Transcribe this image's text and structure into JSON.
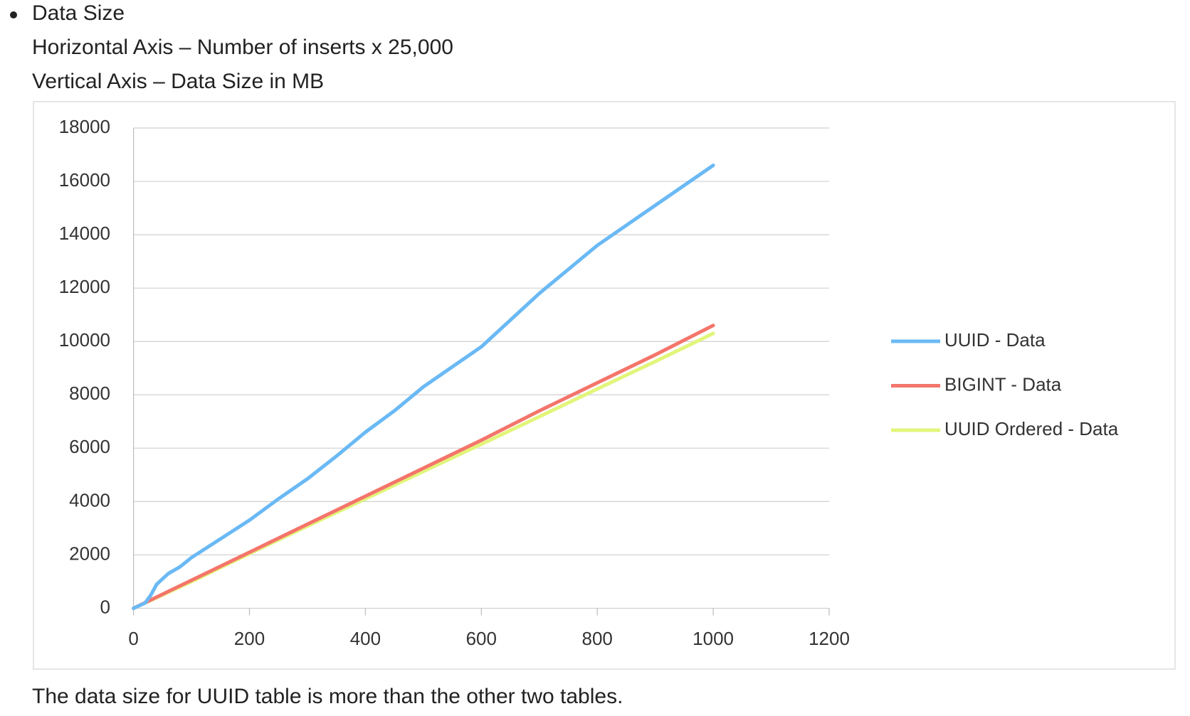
{
  "bullet": "Data Size",
  "lines": [
    "Horizontal Axis – Number of inserts x 25,000",
    "Vertical Axis – Data Size in MB"
  ],
  "chart_data": {
    "type": "line",
    "xlim": [
      0,
      1200
    ],
    "xticks": [
      0,
      200,
      400,
      600,
      800,
      1000,
      1200
    ],
    "ylim": [
      0,
      18000
    ],
    "yticks": [
      0,
      2000,
      4000,
      6000,
      8000,
      10000,
      12000,
      14000,
      16000,
      18000
    ],
    "grid": true,
    "legend": "right",
    "series": [
      {
        "name": "UUID - Data",
        "color": "#6ab9f5",
        "x": [
          0,
          20,
          30,
          40,
          50,
          60,
          80,
          100,
          150,
          200,
          250,
          300,
          350,
          400,
          450,
          500,
          600,
          700,
          800,
          900,
          1000
        ],
        "values": [
          0,
          200,
          500,
          900,
          1100,
          1300,
          1550,
          1900,
          2600,
          3300,
          4100,
          4850,
          5700,
          6600,
          7400,
          8300,
          9800,
          11800,
          13600,
          15100,
          16600
        ]
      },
      {
        "name": "BIGINT - Data",
        "color": "#f4756b",
        "x": [
          0,
          100,
          200,
          300,
          400,
          500,
          600,
          700,
          800,
          900,
          1000
        ],
        "values": [
          0,
          1050,
          2100,
          3150,
          4200,
          5250,
          6300,
          7400,
          8450,
          9500,
          10600
        ]
      },
      {
        "name": "UUID Ordered - Data",
        "color": "#e2f57a",
        "x": [
          0,
          100,
          200,
          300,
          400,
          500,
          600,
          700,
          800,
          900,
          1000
        ],
        "values": [
          0,
          1000,
          2050,
          3080,
          4100,
          5130,
          6150,
          7180,
          8220,
          9250,
          10300
        ]
      }
    ]
  },
  "caption": "The data size for UUID table is more than the other two tables."
}
